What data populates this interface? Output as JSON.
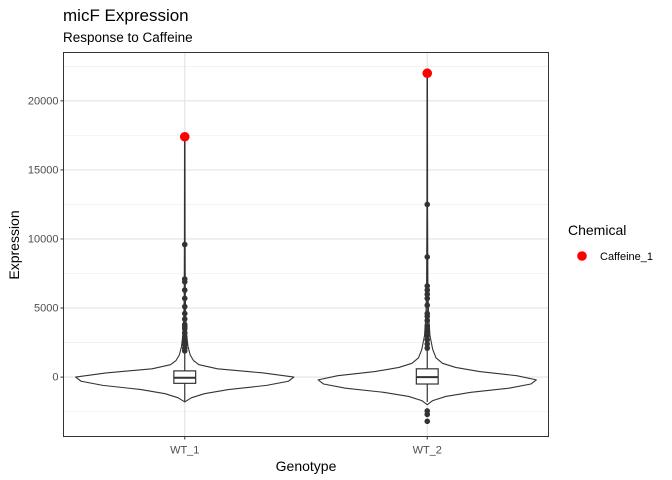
{
  "chart_data": {
    "type": "violin",
    "title": "micF Expression",
    "subtitle": "Response to Caffeine",
    "xlabel": "Genotype",
    "ylabel": "Expression",
    "categories": [
      "WT_1",
      "WT_2"
    ],
    "ylim": [
      -4300,
      23500
    ],
    "y_ticks": [
      0,
      5000,
      10000,
      15000,
      20000
    ],
    "grid": true,
    "legend": {
      "title": "Chemical",
      "position": "right",
      "entries": [
        {
          "label": "Caffeine_1",
          "color": "#ff0000"
        }
      ]
    },
    "groups": [
      {
        "category": "WT_1",
        "box": {
          "q1": -450,
          "median": -50,
          "q3": 450,
          "whisker_low": -1800,
          "whisker_high": 17400
        },
        "violin_profile": [
          [
            -1800,
            0.0
          ],
          [
            -1500,
            0.06
          ],
          [
            -1200,
            0.18
          ],
          [
            -900,
            0.4
          ],
          [
            -600,
            0.75
          ],
          [
            -300,
            0.95
          ],
          [
            0,
            1.0
          ],
          [
            300,
            0.72
          ],
          [
            600,
            0.3
          ],
          [
            900,
            0.13
          ],
          [
            1200,
            0.08
          ],
          [
            1600,
            0.05
          ],
          [
            2200,
            0.03
          ],
          [
            3000,
            0.018
          ],
          [
            4500,
            0.008
          ],
          [
            6000,
            0.005
          ],
          [
            10000,
            0.003
          ],
          [
            17400,
            0.002
          ]
        ],
        "outliers": [
          1900,
          2100,
          2350,
          2600,
          2900,
          3200,
          3500,
          3650,
          3800,
          4200,
          4600,
          5100,
          5700,
          6300,
          6900,
          7100,
          9600
        ],
        "highlight": {
          "value": 17400,
          "series": "Caffeine_1"
        }
      },
      {
        "category": "WT_2",
        "box": {
          "q1": -500,
          "median": 0,
          "q3": 600,
          "whisker_low": -1800,
          "whisker_high": 22000
        },
        "violin_profile": [
          [
            -2000,
            0.0
          ],
          [
            -1700,
            0.05
          ],
          [
            -1400,
            0.17
          ],
          [
            -1100,
            0.4
          ],
          [
            -800,
            0.75
          ],
          [
            -500,
            0.95
          ],
          [
            -200,
            1.0
          ],
          [
            100,
            0.82
          ],
          [
            400,
            0.48
          ],
          [
            700,
            0.26
          ],
          [
            1000,
            0.14
          ],
          [
            1400,
            0.08
          ],
          [
            2000,
            0.05
          ],
          [
            3000,
            0.025
          ],
          [
            4500,
            0.012
          ],
          [
            6500,
            0.006
          ],
          [
            12000,
            0.003
          ],
          [
            22000,
            0.002
          ]
        ],
        "outliers": [
          -2450,
          -2700,
          -3200,
          2100,
          2400,
          2700,
          3000,
          3300,
          3500,
          3700,
          4100,
          4400,
          4600,
          5200,
          5700,
          6000,
          6300,
          6600,
          8700,
          12500
        ],
        "highlight": {
          "value": 22000,
          "series": "Caffeine_1"
        }
      }
    ]
  }
}
